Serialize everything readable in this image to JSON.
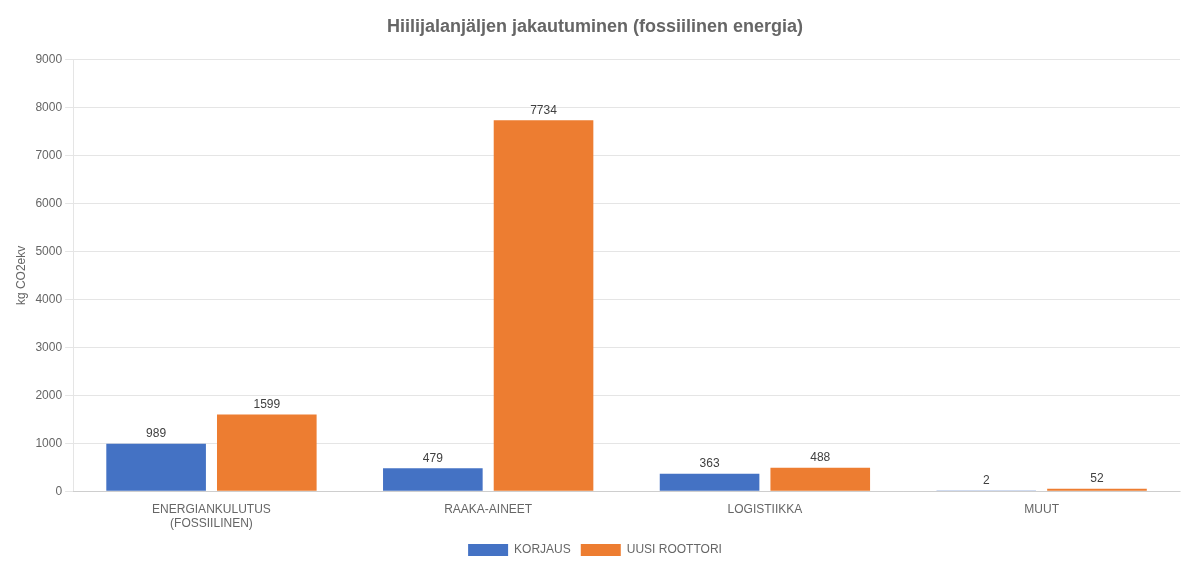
{
  "chart_data": {
    "type": "bar",
    "title": "Hiilijalanjäljen jakautuminen (fossiilinen energia)",
    "categories": [
      "ENERGIANKULUTUS\n(FOSSIILINEN)",
      "RAAKA-AINEET",
      "LOGISTIIKKA",
      "MUUT"
    ],
    "series": [
      {
        "name": "KORJAUS",
        "color": "#4472C4",
        "values": [
          989,
          479,
          363,
          2
        ]
      },
      {
        "name": "UUSI ROOTTORI",
        "color": "#ED7D31",
        "values": [
          1599,
          7734,
          488,
          52
        ]
      }
    ],
    "ylabel": "kg CO2ekv",
    "ylim": [
      0,
      9000
    ],
    "yticks": [
      0,
      1000,
      2000,
      3000,
      4000,
      5000,
      6000,
      7000,
      8000,
      9000
    ],
    "grid": true,
    "legend": "bottom",
    "data_labels": true
  }
}
